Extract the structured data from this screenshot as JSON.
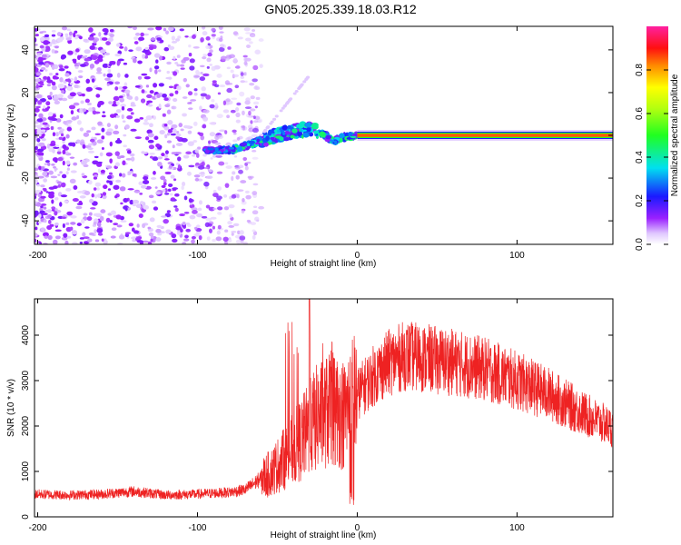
{
  "chart_data": [
    {
      "type": "heatmap",
      "title": "GN05.2025.339.18.03.R12",
      "xlabel": "Height of straight line (km)",
      "ylabel": "Frequency (Hz)",
      "xlim": [
        -202,
        160
      ],
      "ylim": [
        -51,
        51
      ],
      "x_ticks": [
        -200,
        -100,
        0,
        100
      ],
      "x_tick_labels": [
        "-200",
        "-100",
        "0",
        "100"
      ],
      "y_ticks": [
        -40,
        -20,
        0,
        20,
        40
      ],
      "y_tick_labels": [
        "-40",
        "-20",
        "0",
        "20",
        "40"
      ],
      "colorbar": {
        "label": "Normalized spectral amplitude",
        "range": [
          0,
          1
        ],
        "ticks": [
          0,
          0.2,
          0.4,
          0.6,
          0.8
        ],
        "tick_labels": [
          "0.0",
          "0.2",
          "0.4",
          "0.6",
          "0.8"
        ],
        "colormap": "rainbow (white-purple-blue-cyan-green-yellow-orange-red-magenta)"
      },
      "features": [
        {
          "kind": "scatter_noise",
          "x_range": [
            -202,
            -60
          ],
          "y_range": [
            -51,
            51
          ],
          "amplitude": 0.1
        },
        {
          "kind": "ridge",
          "points": [
            [
              -95,
              -7
            ],
            [
              -80,
              -7
            ],
            [
              -70,
              -5
            ],
            [
              -55,
              -1
            ],
            [
              -40,
              2
            ],
            [
              -30,
              3
            ],
            [
              -20,
              0
            ],
            [
              -15,
              -3
            ],
            [
              -10,
              -1
            ],
            [
              0,
              0
            ]
          ],
          "amplitude": 0.3
        },
        {
          "kind": "carrier",
          "x_range": [
            0,
            160
          ],
          "y": 0,
          "amplitude": 0.85
        }
      ]
    },
    {
      "type": "line",
      "xlabel": "Height of straight line (km)",
      "ylabel": "SNR (10 * v/v)",
      "xlim": [
        -202,
        160
      ],
      "ylim": [
        0,
        4800
      ],
      "x_ticks": [
        -200,
        -100,
        0,
        100
      ],
      "x_tick_labels": [
        "-200",
        "-100",
        "0",
        "100"
      ],
      "y_ticks": [
        0,
        1000,
        2000,
        3000,
        4000
      ],
      "y_tick_labels": [
        "0",
        "1000",
        "2000",
        "3000",
        "4000"
      ],
      "series": [
        {
          "name": "SNR",
          "color": "#ee2222",
          "x": [
            -202,
            -180,
            -160,
            -140,
            -120,
            -100,
            -80,
            -70,
            -62,
            -55,
            -45,
            -35,
            -25,
            -15,
            -8,
            -3,
            0,
            10,
            20,
            30,
            40,
            60,
            80,
            100,
            120,
            140,
            160
          ],
          "values": [
            500,
            480,
            500,
            560,
            480,
            500,
            540,
            600,
            800,
            950,
            1300,
            1700,
            2200,
            2400,
            2250,
            2600,
            2700,
            3100,
            3400,
            3550,
            3500,
            3400,
            3250,
            3000,
            2700,
            2300,
            1950
          ],
          "noise": "high-frequency jitter of roughly +/-15%, with isolated spikes near x = -30 (to ~4800) and a dropout near x = -3 (to ~200)"
        }
      ]
    }
  ],
  "colors": {
    "axis": "#000000",
    "line": "#ee2222",
    "background": "#ffffff"
  }
}
